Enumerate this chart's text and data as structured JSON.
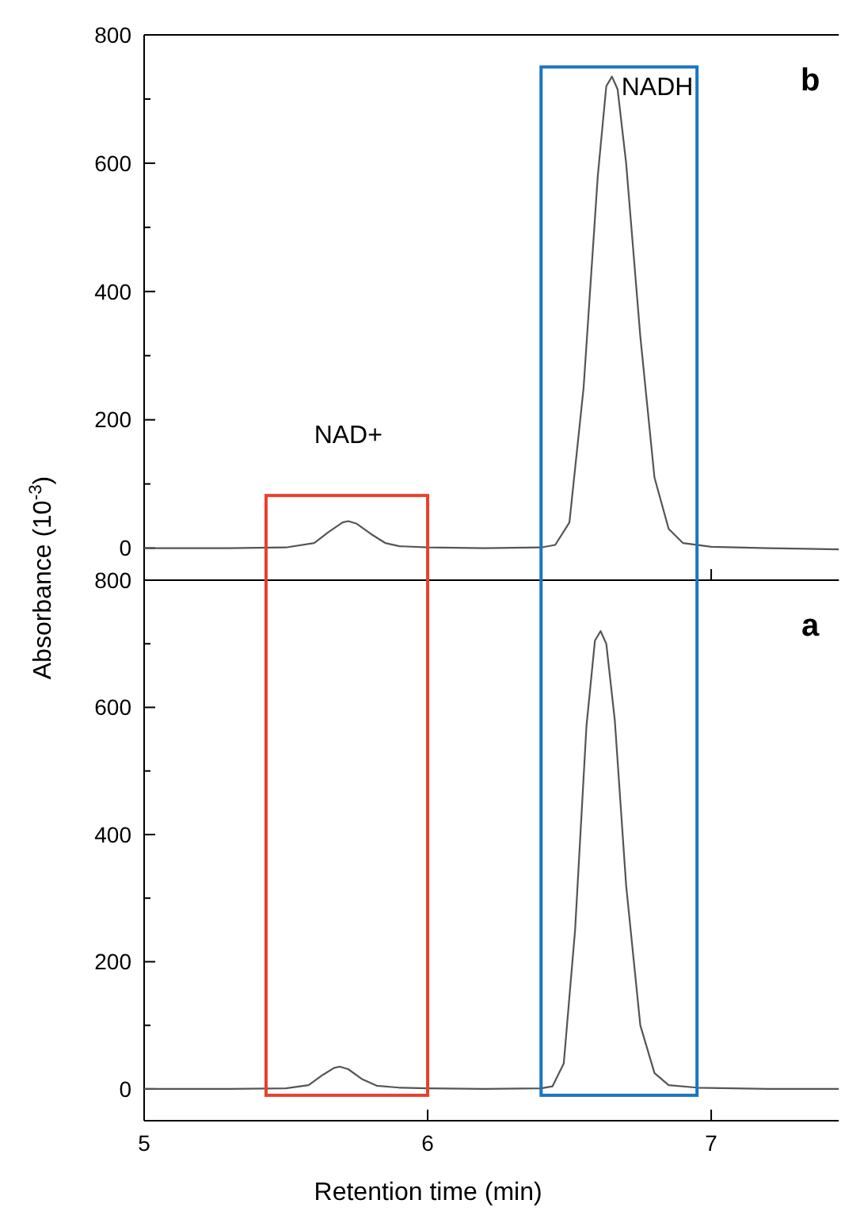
{
  "chart_data": [
    {
      "type": "line",
      "ylabel": "Absorbance (10$^{-3}$)",
      "x": [
        5,
        5.3,
        5.5,
        5.6,
        5.65,
        5.7,
        5.72,
        5.75,
        5.8,
        5.85,
        5.9,
        6.0,
        6.2,
        6.4,
        6.45,
        6.5,
        6.55,
        6.6,
        6.63,
        6.65,
        6.67,
        6.7,
        6.75,
        6.8,
        6.85,
        6.9,
        7.0,
        7.2,
        7.45
      ],
      "series": [
        {
          "color": "#555555",
          "values": [
            0,
            0,
            1,
            8,
            25,
            40,
            42,
            38,
            22,
            8,
            3,
            1,
            0,
            1,
            5,
            40,
            250,
            580,
            720,
            735,
            715,
            600,
            330,
            110,
            30,
            8,
            2,
            0,
            -2
          ]
        }
      ],
      "xlim": [
        5,
        7.45
      ],
      "xticks": [
        {
          "value": 5,
          "label": null
        },
        {
          "value": 6,
          "label": null
        },
        {
          "value": 7,
          "label": null
        }
      ],
      "ylim": [
        -50,
        800
      ],
      "yticks": [
        0,
        {
          "value": 100,
          "label": null
        },
        200,
        {
          "value": 300,
          "label": null
        },
        400,
        {
          "value": 500,
          "label": null
        },
        600,
        {
          "value": 700,
          "label": null
        },
        800
      ],
      "tick_labels": "y",
      "grid": false,
      "line_style": "solid",
      "annotations": [
        {
          "text": "NAD+",
          "x": 5.72,
          "y": 42
        },
        {
          "text": "NADH",
          "x": 6.65,
          "y": 735
        },
        "b"
      ]
    },
    {
      "type": "line",
      "xlabel": "Retention time (min)",
      "x": [
        5,
        5.3,
        5.5,
        5.58,
        5.63,
        5.67,
        5.69,
        5.72,
        5.77,
        5.82,
        5.9,
        6.0,
        6.2,
        6.4,
        6.44,
        6.48,
        6.52,
        6.56,
        6.59,
        6.61,
        6.63,
        6.66,
        6.7,
        6.75,
        6.8,
        6.85,
        6.95,
        7.2,
        7.45
      ],
      "series": [
        {
          "color": "#555555",
          "values": [
            0,
            0,
            1,
            6,
            22,
            33,
            35,
            31,
            15,
            5,
            2,
            1,
            0,
            1,
            4,
            40,
            250,
            570,
            705,
            720,
            700,
            580,
            320,
            100,
            25,
            6,
            2,
            0,
            0
          ]
        }
      ],
      "xlim": [
        5,
        7.45
      ],
      "xticks": [
        5,
        6,
        7
      ],
      "ylim": [
        -50,
        800
      ],
      "yticks": [
        0,
        {
          "value": 100,
          "label": null
        },
        200,
        {
          "value": 300,
          "label": null
        },
        400,
        {
          "value": 500,
          "label": null
        },
        600,
        {
          "value": 700,
          "label": null
        },
        800
      ],
      "grid": false,
      "line_style": "solid",
      "annotations": [
        "a"
      ]
    }
  ]
}
